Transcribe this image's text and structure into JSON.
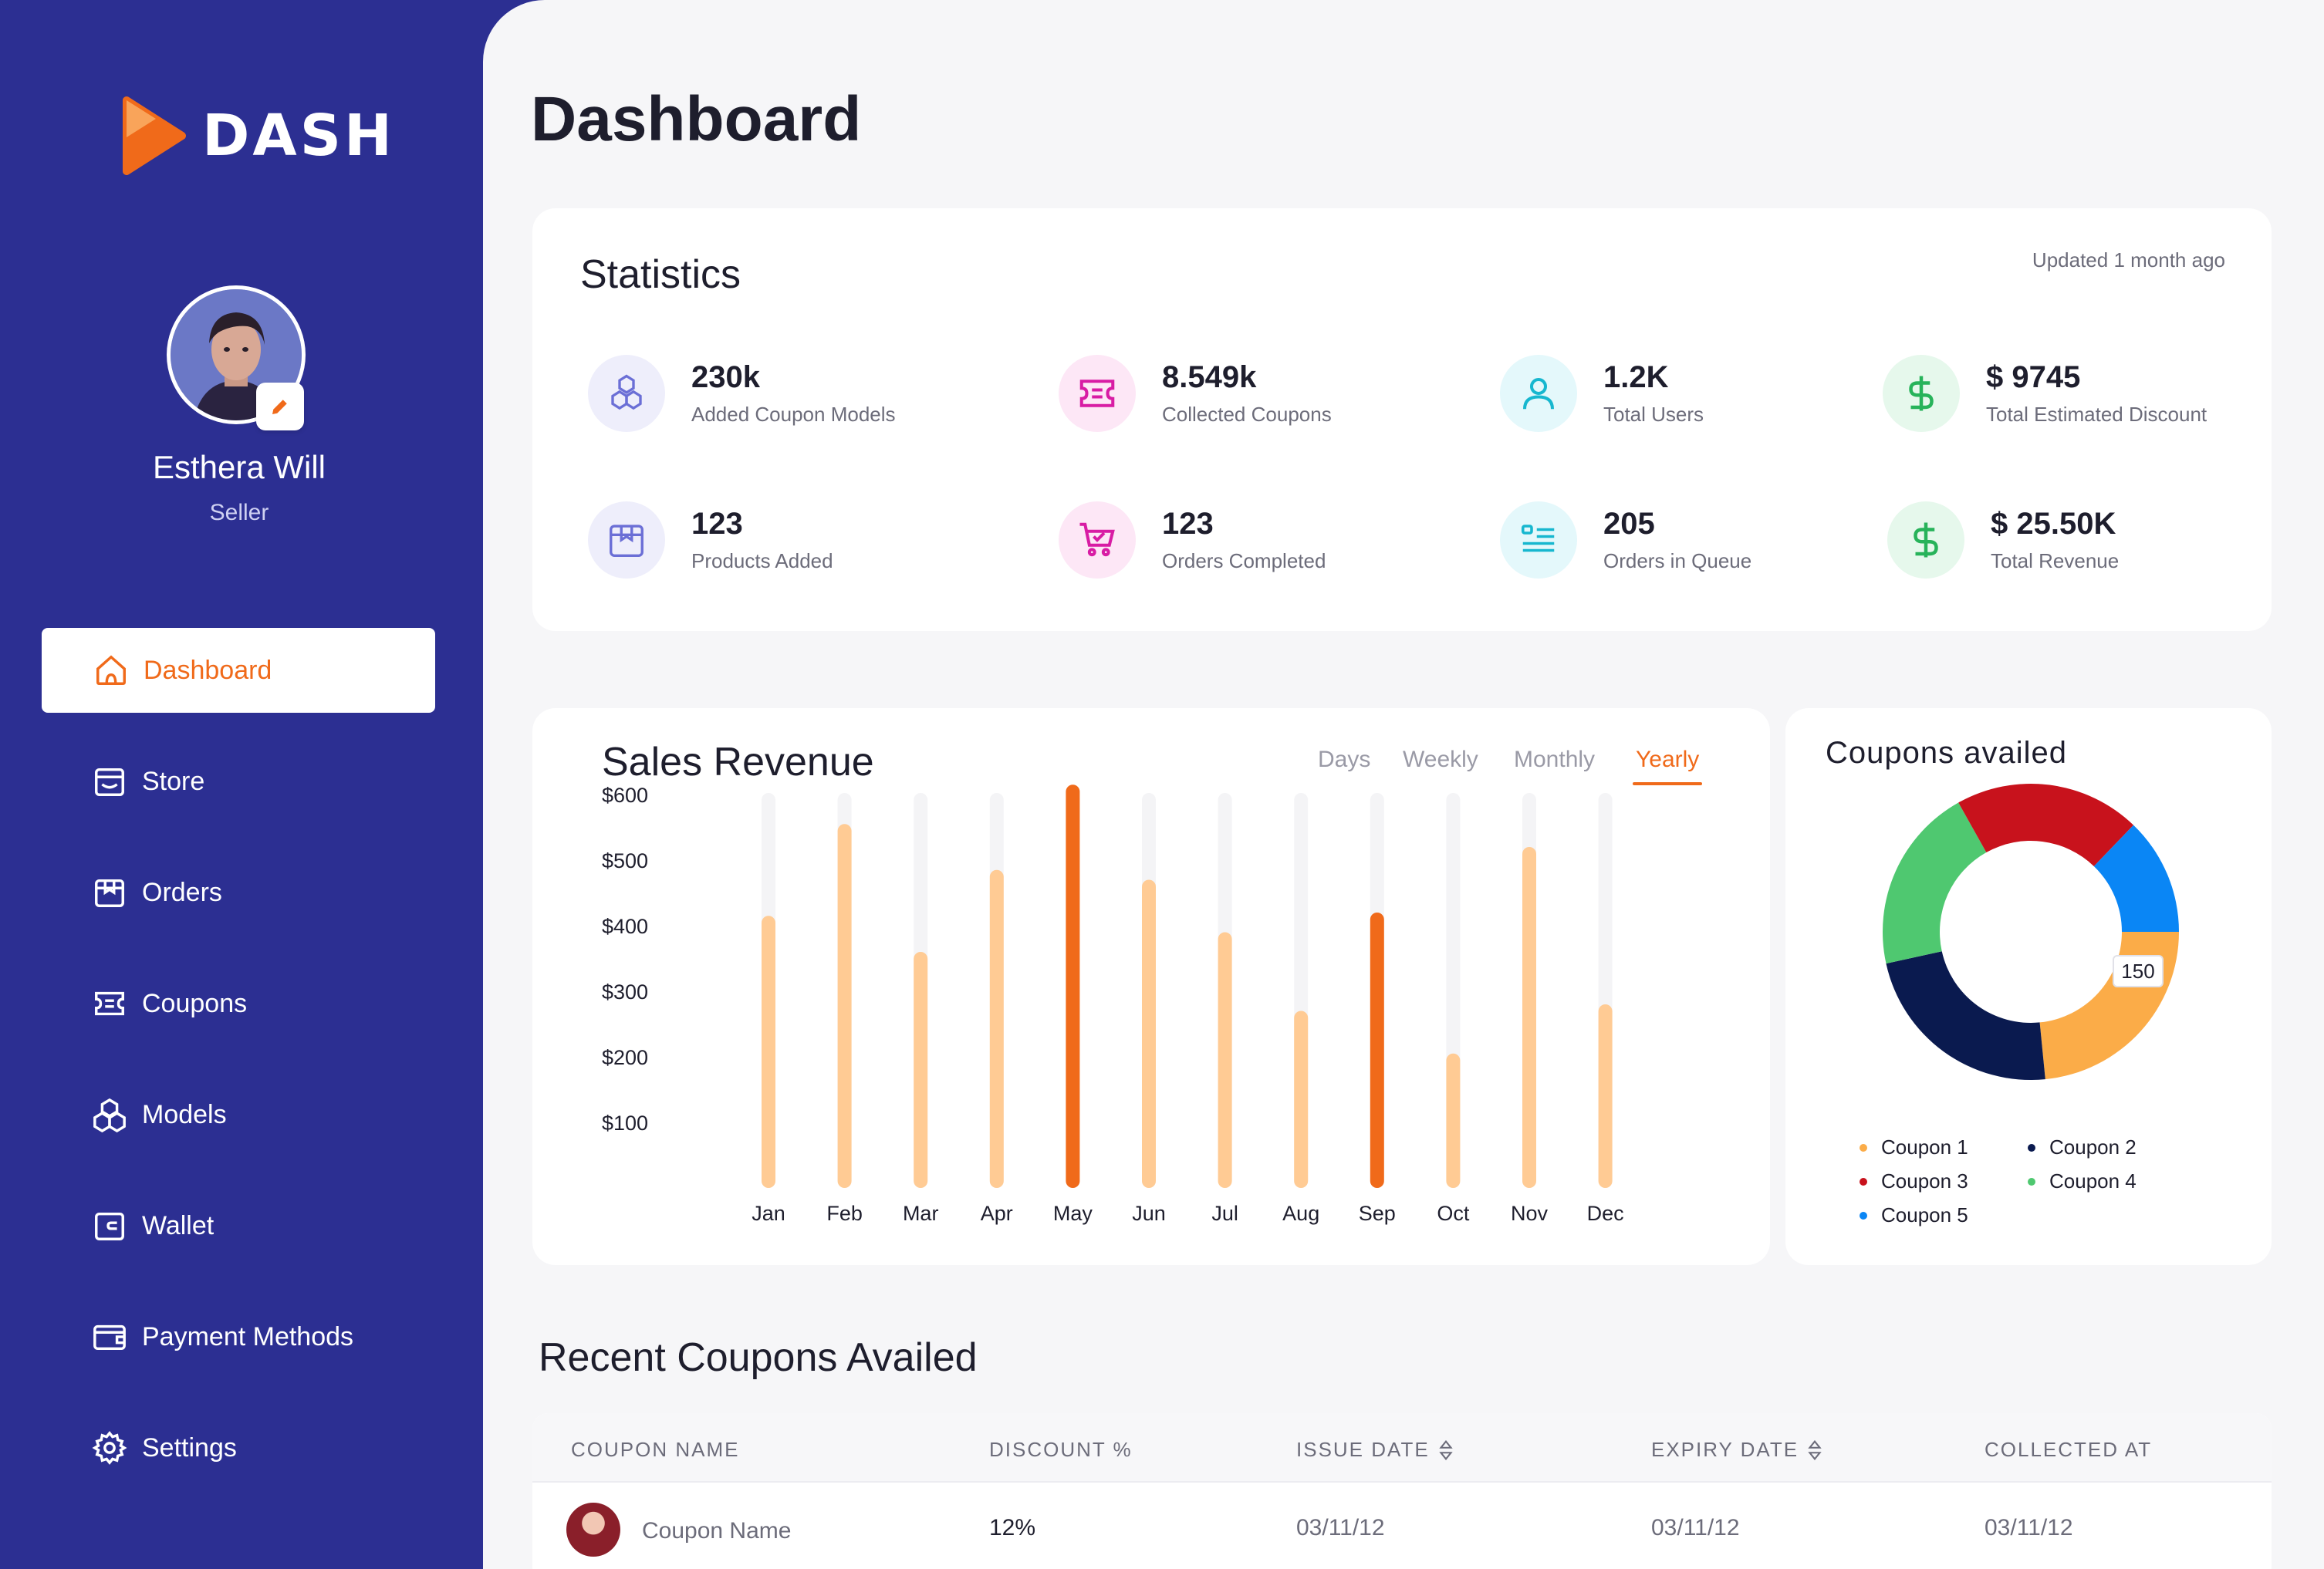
{
  "app": {
    "logo_text": "DASH"
  },
  "user": {
    "name": "Esthera Will",
    "role": "Seller"
  },
  "sidebar": {
    "items": [
      {
        "label": "Dashboard",
        "icon": "home-icon",
        "active": true
      },
      {
        "label": "Store",
        "icon": "store-icon",
        "active": false
      },
      {
        "label": "Orders",
        "icon": "orders-icon",
        "active": false
      },
      {
        "label": "Coupons",
        "icon": "coupon-icon",
        "active": false
      },
      {
        "label": "Models",
        "icon": "models-icon",
        "active": false
      },
      {
        "label": "Wallet",
        "icon": "wallet-icon",
        "active": false
      },
      {
        "label": "Payment Methods",
        "icon": "payment-icon",
        "active": false
      },
      {
        "label": "Settings",
        "icon": "gear-icon",
        "active": false
      }
    ]
  },
  "page": {
    "title": "Dashboard"
  },
  "statistics": {
    "title": "Statistics",
    "updated": "Updated 1 month ago",
    "items": [
      {
        "value": "230k",
        "label": "Added Coupon Models",
        "icon": "cubes-icon"
      },
      {
        "value": "8.549k",
        "label": "Collected Coupons",
        "icon": "ticket-icon"
      },
      {
        "value": "1.2K",
        "label": "Total Users",
        "icon": "user-icon"
      },
      {
        "value": "$ 9745",
        "label": "Total Estimated Discount",
        "icon": "dollar-icon"
      },
      {
        "value": "123",
        "label": "Products Added",
        "icon": "box-icon"
      },
      {
        "value": "123",
        "label": "Orders Completed",
        "icon": "cart-icon"
      },
      {
        "value": "205",
        "label": "Orders in Queue",
        "icon": "list-icon"
      },
      {
        "value": "$ 25.50K",
        "label": "Total Revenue",
        "icon": "dollar-icon"
      }
    ]
  },
  "sales": {
    "title": "Sales Revenue",
    "tabs": [
      "Days",
      "Weekly",
      "Monthly",
      "Yearly"
    ],
    "active_tab": "Yearly"
  },
  "coupons_availed": {
    "title": "Coupons availed",
    "callout": "150",
    "legend": [
      "Coupon 1",
      "Coupon 2",
      "Coupon 3",
      "Coupon 4",
      "Coupon 5"
    ]
  },
  "recent": {
    "title": "Recent Coupons Availed",
    "columns": [
      "COUPON NAME",
      "DISCOUNT %",
      "ISSUE DATE",
      "EXPIRY DATE",
      "COLLECTED AT"
    ],
    "rows": [
      {
        "name": "Coupon Name",
        "discount": "12%",
        "issue": "03/11/12",
        "expiry": "03/11/12",
        "collected": "03/11/12"
      }
    ]
  },
  "colors": {
    "sidebar": "#2c2f92",
    "accent": "#f06a1a",
    "bar_light": "#ffcb94",
    "bar_track": "#f4f4f6",
    "coupon_1": "#fbac48",
    "coupon_2": "#0a1a4f",
    "coupon_3": "#c8121c",
    "coupon_4": "#4fc870",
    "coupon_5": "#0a86f5"
  },
  "chart_data": [
    {
      "type": "bar",
      "title": "Sales Revenue",
      "categories": [
        "Jan",
        "Feb",
        "Mar",
        "Apr",
        "May",
        "Jun",
        "Jul",
        "Aug",
        "Sep",
        "Oct",
        "Nov",
        "Dec"
      ],
      "values": [
        415,
        555,
        360,
        485,
        615,
        470,
        390,
        270,
        420,
        205,
        520,
        280
      ],
      "highlighted": [
        "May",
        "Sep"
      ],
      "yticks": [
        "$600",
        "$500",
        "$400",
        "$300",
        "$200",
        "$100"
      ],
      "ylim": [
        0,
        600
      ],
      "grid": false
    },
    {
      "type": "pie",
      "title": "Coupons availed",
      "labels": [
        "Coupon 1",
        "Coupon 2",
        "Coupon 3",
        "Coupon 4",
        "Coupon 5"
      ],
      "values": [
        150,
        148,
        130,
        130,
        82
      ]
    }
  ]
}
